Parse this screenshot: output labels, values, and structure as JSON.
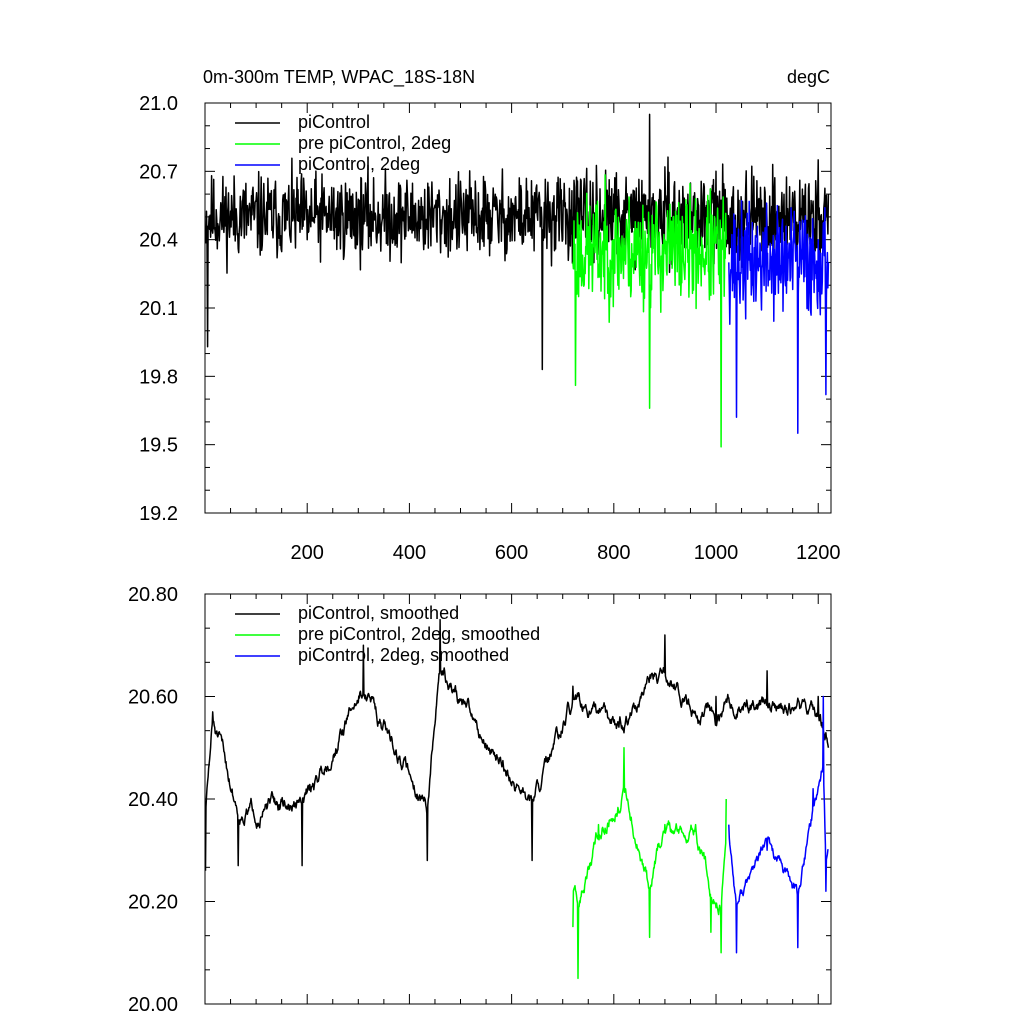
{
  "chart_data": [
    {
      "type": "line",
      "title": "0m-300m TEMP, WPAC_18S-18N",
      "units": "degC",
      "xlim": [
        0,
        1225
      ],
      "ylim": [
        19.2,
        21.0
      ],
      "xticks": [
        200,
        400,
        600,
        800,
        1000,
        1200
      ],
      "xtick_labels": [
        "200",
        "400",
        "600",
        "800",
        "1000",
        "1200"
      ],
      "yticks": [
        19.2,
        19.5,
        19.8,
        20.1,
        20.4,
        20.7,
        21.0
      ],
      "ytick_labels": [
        "19.2",
        "19.5",
        "19.8",
        "20.1",
        "20.4",
        "20.7",
        "21.0"
      ],
      "legend_position": "top-left",
      "series": [
        {
          "name": "piControl",
          "color": "#000000",
          "x_start": 1,
          "x_end": 1220,
          "mean": 20.5,
          "amplitude": 0.45,
          "seed": 11,
          "keypoints": [
            [
              1,
              20.45
            ],
            [
              5,
              19.93
            ],
            [
              200,
              20.4
            ],
            [
              400,
              20.5
            ],
            [
              600,
              20.55
            ],
            [
              660,
              19.83
            ],
            [
              800,
              20.6
            ],
            [
              870,
              20.95
            ],
            [
              1000,
              20.7
            ],
            [
              1200,
              20.75
            ],
            [
              1220,
              20.6
            ]
          ]
        },
        {
          "name": "pre piControl, 2deg",
          "color": "#00ff00",
          "x_start": 720,
          "x_end": 1020,
          "mean": 20.35,
          "amplitude": 0.6,
          "seed": 23,
          "keypoints": [
            [
              720,
              20.3
            ],
            [
              725,
              19.76
            ],
            [
              800,
              20.4
            ],
            [
              870,
              19.66
            ],
            [
              900,
              20.4
            ],
            [
              1010,
              19.49
            ],
            [
              1020,
              20.4
            ]
          ]
        },
        {
          "name": "piControl, 2deg",
          "color": "#0000ff",
          "x_start": 1025,
          "x_end": 1220,
          "mean": 20.3,
          "amplitude": 0.6,
          "seed": 37,
          "keypoints": [
            [
              1025,
              20.3
            ],
            [
              1040,
              19.62
            ],
            [
              1100,
              20.3
            ],
            [
              1160,
              19.55
            ],
            [
              1200,
              20.4
            ],
            [
              1215,
              19.72
            ],
            [
              1220,
              20.3
            ]
          ]
        }
      ]
    },
    {
      "type": "line",
      "title": "",
      "xlim": [
        0,
        1225
      ],
      "ylim": [
        20.0,
        20.8
      ],
      "xticks": [
        200,
        400,
        600,
        800,
        1000,
        1200
      ],
      "yticks": [
        20.0,
        20.2,
        20.4,
        20.6,
        20.8
      ],
      "ytick_labels": [
        "20.00",
        "20.20",
        "20.40",
        "20.60",
        "20.80"
      ],
      "legend_position": "top-left",
      "series": [
        {
          "name": "piControl, smoothed",
          "color": "#000000",
          "x_start": 1,
          "x_end": 1220,
          "mean": 20.52,
          "amplitude": 0.12,
          "seed": 51,
          "keypoints": [
            [
              1,
              20.26
            ],
            [
              15,
              20.57
            ],
            [
              65,
              20.27
            ],
            [
              190,
              20.27
            ],
            [
              310,
              20.7
            ],
            [
              435,
              20.28
            ],
            [
              460,
              20.75
            ],
            [
              640,
              20.28
            ],
            [
              720,
              20.62
            ],
            [
              800,
              20.55
            ],
            [
              900,
              20.72
            ],
            [
              1000,
              20.6
            ],
            [
              1100,
              20.65
            ],
            [
              1200,
              20.6
            ],
            [
              1220,
              20.5
            ]
          ]
        },
        {
          "name": "pre piControl, 2deg, smoothed",
          "color": "#00ff00",
          "x_start": 720,
          "x_end": 1020,
          "mean": 20.33,
          "amplitude": 0.12,
          "seed": 63,
          "keypoints": [
            [
              720,
              20.15
            ],
            [
              730,
              20.05
            ],
            [
              770,
              20.35
            ],
            [
              820,
              20.5
            ],
            [
              870,
              20.13
            ],
            [
              900,
              20.35
            ],
            [
              960,
              20.35
            ],
            [
              990,
              20.14
            ],
            [
              1010,
              20.1
            ],
            [
              1020,
              20.4
            ]
          ]
        },
        {
          "name": "piControl, 2deg, smoothed",
          "color": "#0000ff",
          "x_start": 1025,
          "x_end": 1220,
          "mean": 20.32,
          "amplitude": 0.1,
          "seed": 77,
          "keypoints": [
            [
              1025,
              20.35
            ],
            [
              1040,
              20.1
            ],
            [
              1100,
              20.3
            ],
            [
              1160,
              20.11
            ],
            [
              1190,
              20.42
            ],
            [
              1210,
              20.6
            ],
            [
              1215,
              20.22
            ],
            [
              1220,
              20.3
            ]
          ]
        }
      ]
    }
  ]
}
